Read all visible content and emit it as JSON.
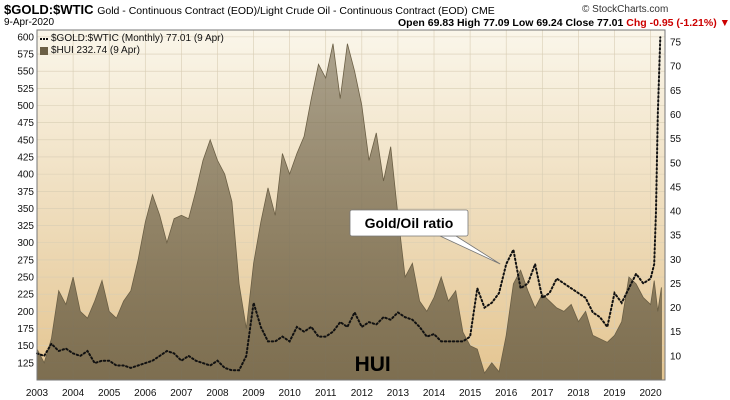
{
  "header": {
    "ticker": "$GOLD:$WTIC",
    "subtitle": "Gold - Continuous Contract (EOD)/Light Crude Oil - Continuous Contract (EOD)",
    "exchange": "CME",
    "date": "9-Apr-2020",
    "open": "Open 69.83",
    "high": "High 77.09",
    "low": "Low 69.24",
    "close": "Close 77.01",
    "change": "Chg -0.95 (-1.21%)",
    "change_arrow": "▼",
    "brand": "© StockCharts.com"
  },
  "legend": {
    "ratio": "$GOLD:$WTIC (Monthly) 77.01 (9 Apr)",
    "hui": "$HUI 232.74 (9 Apr)"
  },
  "colors": {
    "bg_top": "#faf6ea",
    "bg_bottom": "#e4c591",
    "hui_area": "#6b5f45",
    "ratio_line": "#111111"
  },
  "chart_data": {
    "type": "area",
    "x_tick_labels": [
      "2003",
      "2004",
      "2005",
      "2006",
      "2007",
      "2008",
      "2009",
      "2010",
      "2011",
      "2012",
      "2013",
      "2014",
      "2015",
      "2016",
      "2017",
      "2018",
      "2019",
      "2020"
    ],
    "xlim": [
      2003.0,
      2020.4
    ],
    "left_axis": {
      "ticks": [
        125,
        150,
        175,
        200,
        225,
        250,
        275,
        300,
        325,
        350,
        375,
        400,
        425,
        450,
        475,
        500,
        525,
        550,
        575,
        600
      ],
      "ylim": [
        100,
        610
      ]
    },
    "right_axis": {
      "ticks": [
        10,
        15,
        20,
        25,
        30,
        35,
        40,
        45,
        50,
        55,
        60,
        65,
        70,
        75
      ],
      "ylim": [
        5,
        77.5
      ]
    },
    "annotations": [
      {
        "text": "Gold/Oil ratio",
        "x": 2016.0,
        "y_right": 34
      },
      {
        "text": "HUI",
        "x": 2012.3,
        "y_left": 125
      }
    ],
    "series": [
      {
        "name": "$HUI",
        "type": "area",
        "axis": "left",
        "x": [
          2003.0,
          2003.2,
          2003.4,
          2003.6,
          2003.8,
          2004.0,
          2004.2,
          2004.4,
          2004.6,
          2004.8,
          2005.0,
          2005.2,
          2005.4,
          2005.6,
          2005.8,
          2006.0,
          2006.2,
          2006.4,
          2006.6,
          2006.8,
          2007.0,
          2007.2,
          2007.4,
          2007.6,
          2007.8,
          2008.0,
          2008.2,
          2008.4,
          2008.6,
          2008.8,
          2009.0,
          2009.2,
          2009.4,
          2009.6,
          2009.8,
          2010.0,
          2010.2,
          2010.4,
          2010.6,
          2010.8,
          2011.0,
          2011.2,
          2011.4,
          2011.6,
          2011.8,
          2012.0,
          2012.2,
          2012.4,
          2012.6,
          2012.8,
          2013.0,
          2013.2,
          2013.4,
          2013.6,
          2013.8,
          2014.0,
          2014.2,
          2014.4,
          2014.6,
          2014.8,
          2015.0,
          2015.2,
          2015.4,
          2015.6,
          2015.8,
          2016.0,
          2016.2,
          2016.4,
          2016.6,
          2016.8,
          2017.0,
          2017.2,
          2017.4,
          2017.6,
          2017.8,
          2018.0,
          2018.2,
          2018.4,
          2018.6,
          2018.8,
          2019.0,
          2019.2,
          2019.4,
          2019.6,
          2019.8,
          2020.0,
          2020.1,
          2020.2,
          2020.3
        ],
        "values": [
          145,
          125,
          160,
          230,
          210,
          250,
          200,
          190,
          215,
          245,
          200,
          190,
          215,
          230,
          275,
          330,
          370,
          340,
          300,
          335,
          340,
          335,
          375,
          420,
          450,
          420,
          400,
          360,
          240,
          175,
          270,
          330,
          380,
          340,
          430,
          400,
          430,
          455,
          510,
          560,
          540,
          590,
          510,
          590,
          550,
          500,
          420,
          460,
          390,
          440,
          340,
          250,
          270,
          215,
          200,
          220,
          250,
          215,
          230,
          170,
          150,
          145,
          110,
          125,
          112,
          165,
          240,
          260,
          230,
          205,
          225,
          215,
          205,
          200,
          210,
          185,
          200,
          165,
          160,
          155,
          165,
          185,
          250,
          240,
          220,
          210,
          245,
          200,
          235
        ]
      },
      {
        "name": "$GOLD:$WTIC",
        "type": "line",
        "axis": "right",
        "x": [
          2003.0,
          2003.2,
          2003.4,
          2003.6,
          2003.8,
          2004.0,
          2004.2,
          2004.4,
          2004.6,
          2004.8,
          2005.0,
          2005.2,
          2005.4,
          2005.6,
          2005.8,
          2006.0,
          2006.2,
          2006.4,
          2006.6,
          2006.8,
          2007.0,
          2007.2,
          2007.4,
          2007.6,
          2007.8,
          2008.0,
          2008.2,
          2008.4,
          2008.6,
          2008.8,
          2009.0,
          2009.2,
          2009.4,
          2009.6,
          2009.8,
          2010.0,
          2010.2,
          2010.4,
          2010.6,
          2010.8,
          2011.0,
          2011.2,
          2011.4,
          2011.6,
          2011.8,
          2012.0,
          2012.2,
          2012.4,
          2012.6,
          2012.8,
          2013.0,
          2013.2,
          2013.4,
          2013.6,
          2013.8,
          2014.0,
          2014.2,
          2014.4,
          2014.6,
          2014.8,
          2015.0,
          2015.2,
          2015.4,
          2015.6,
          2015.8,
          2016.0,
          2016.2,
          2016.4,
          2016.6,
          2016.8,
          2017.0,
          2017.2,
          2017.4,
          2017.6,
          2017.8,
          2018.0,
          2018.2,
          2018.4,
          2018.6,
          2018.8,
          2019.0,
          2019.2,
          2019.4,
          2019.6,
          2019.8,
          2020.0,
          2020.1,
          2020.15,
          2020.2,
          2020.27
        ],
        "values": [
          10.5,
          10,
          12.5,
          11,
          11.5,
          10.5,
          10,
          11,
          8.5,
          9,
          9,
          8,
          8,
          7.5,
          8,
          8.5,
          9,
          10,
          11,
          10.5,
          9,
          10,
          9,
          8.5,
          8,
          9,
          7.5,
          7,
          7,
          10,
          21,
          16,
          13,
          13,
          14,
          13,
          16,
          15,
          16,
          14,
          14,
          15,
          17,
          16,
          19,
          16,
          17,
          16.5,
          18,
          17.5,
          19,
          18,
          17.5,
          16,
          14,
          14.5,
          13,
          13,
          13,
          13,
          14,
          24,
          20,
          21,
          23,
          29,
          32,
          24,
          25,
          29,
          22,
          23,
          26,
          25,
          24,
          23,
          22,
          19,
          18,
          16,
          23,
          21,
          24,
          27,
          25,
          26,
          29,
          40,
          60,
          76
        ]
      }
    ]
  }
}
